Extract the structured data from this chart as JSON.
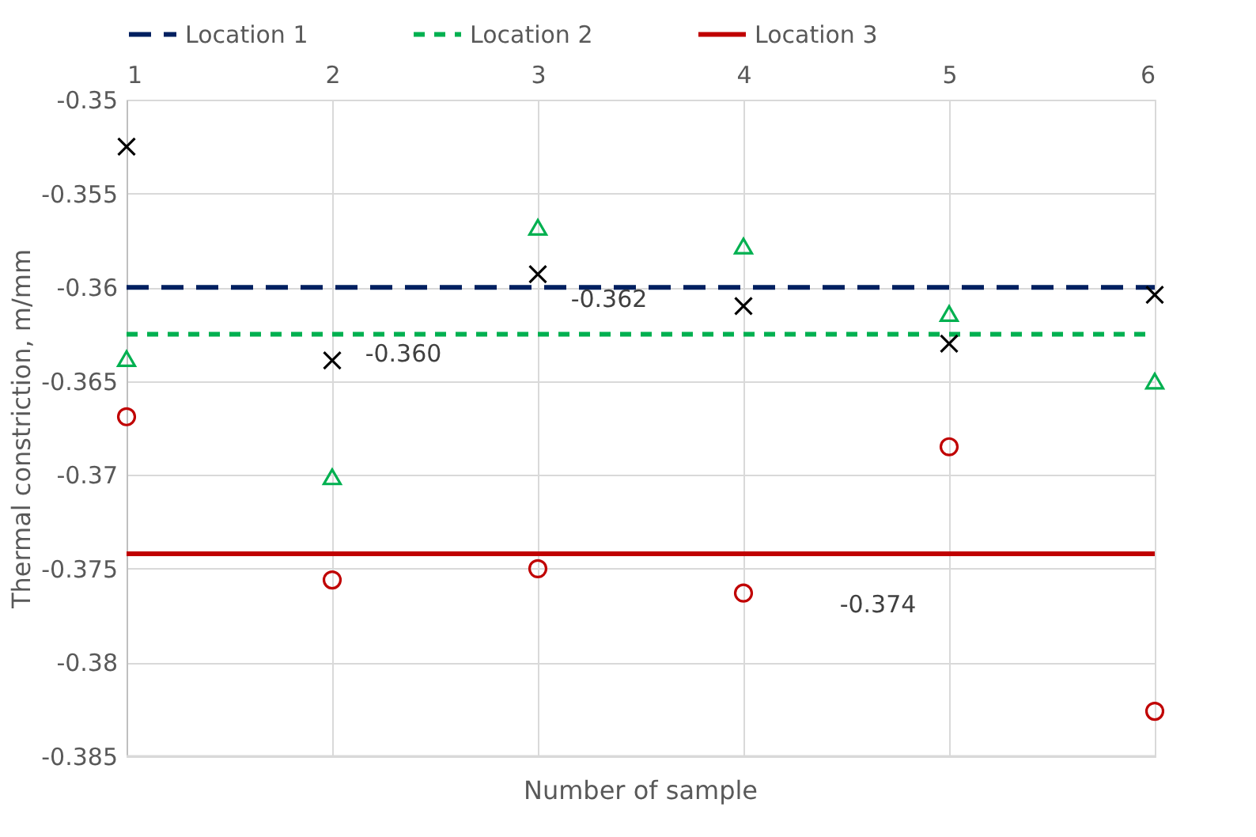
{
  "chart_data": {
    "type": "scatter",
    "xlabel": "Number of sample",
    "ylabel": "Thermal constriction, m/mm",
    "x": [
      1,
      2,
      3,
      4,
      5,
      6
    ],
    "series": [
      {
        "name": "Location 1",
        "type": "line",
        "color": "#002060",
        "line_style": "dashed",
        "marker": "none",
        "values": [
          -0.36,
          -0.36,
          -0.36,
          -0.36,
          -0.36,
          -0.36
        ]
      },
      {
        "name": "Location 2",
        "type": "line",
        "color": "#00b050",
        "line_style": "dotted",
        "marker": "none",
        "values": [
          -0.3625,
          -0.3625,
          -0.3625,
          -0.3625,
          -0.3625,
          -0.3625
        ]
      },
      {
        "name": "Location 3",
        "type": "line",
        "color": "#c00000",
        "line_style": "solid",
        "marker": "none",
        "values": [
          -0.3742,
          -0.3742,
          -0.3742,
          -0.3742,
          -0.3742,
          -0.3742
        ]
      },
      {
        "color": "#000000",
        "marker": "cross",
        "values": [
          -0.3525,
          -0.3639,
          -0.3593,
          -0.361,
          -0.363,
          -0.3604
        ]
      },
      {
        "color": "#00b050",
        "marker": "triangle",
        "values": [
          -0.3638,
          -0.3701,
          -0.3568,
          -0.3578,
          -0.3614,
          -0.365
        ]
      },
      {
        "color": "#c00000",
        "marker": "circle",
        "values": [
          -0.3669,
          -0.3756,
          -0.375,
          -0.3763,
          -0.3685,
          -0.3826
        ]
      }
    ],
    "xlim": [
      1,
      6
    ],
    "xticks": [
      1,
      2,
      3,
      4,
      5,
      6
    ],
    "ylim": [
      -0.385,
      -0.35
    ],
    "yticks": [
      -0.385,
      -0.38,
      -0.375,
      -0.37,
      -0.365,
      -0.36,
      -0.355,
      -0.35
    ],
    "annotations": [
      {
        "text": "-0.362",
        "x": 3,
        "y": -0.3625
      },
      {
        "text": "-0.360",
        "x": 2,
        "y": -0.36
      },
      {
        "text": "-0.374",
        "x": 5,
        "y": -0.3742
      }
    ],
    "grid": true,
    "legend": "top"
  }
}
